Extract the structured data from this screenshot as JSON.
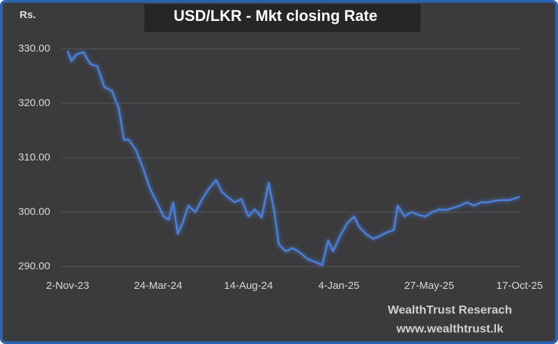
{
  "chart_data": {
    "type": "line",
    "title": "USD/LKR - Mkt closing Rate",
    "y_label": "Rs.",
    "credits": [
      "WealthTrust  Reserach",
      "www.wealthtrust.lk"
    ],
    "xlim": [
      "2023-11-02",
      "2025-10-17"
    ],
    "xticks": [
      {
        "value": "2023-11-02",
        "label": "2-Nov-23"
      },
      {
        "value": "2024-03-24",
        "label": "24-Mar-24"
      },
      {
        "value": "2024-08-14",
        "label": "14-Aug-24"
      },
      {
        "value": "2025-01-04",
        "label": "4-Jan-25"
      },
      {
        "value": "2025-05-27",
        "label": "27-May-25"
      },
      {
        "value": "2025-10-17",
        "label": "17-Oct-25"
      }
    ],
    "ylim": [
      290,
      330
    ],
    "yticks": [
      {
        "value": 290,
        "label": "290.00"
      },
      {
        "value": 300,
        "label": "300.00"
      },
      {
        "value": 310,
        "label": "310.00"
      },
      {
        "value": 320,
        "label": "320.00"
      },
      {
        "value": 330,
        "label": "330.00"
      }
    ],
    "grid": true,
    "x": [
      "2023-11-02",
      "2023-11-08",
      "2023-11-16",
      "2023-11-27",
      "2023-12-08",
      "2023-12-19",
      "2023-12-30",
      "2024-01-11",
      "2024-01-22",
      "2024-01-30",
      "2024-02-07",
      "2024-02-18",
      "2024-02-29",
      "2024-03-11",
      "2024-03-22",
      "2024-04-02",
      "2024-04-10",
      "2024-04-17",
      "2024-04-24",
      "2024-05-02",
      "2024-05-11",
      "2024-05-22",
      "2024-06-02",
      "2024-06-13",
      "2024-06-24",
      "2024-07-03",
      "2024-07-12",
      "2024-07-23",
      "2024-08-03",
      "2024-08-14",
      "2024-08-24",
      "2024-09-04",
      "2024-09-15",
      "2024-09-24",
      "2024-10-01",
      "2024-10-12",
      "2024-10-23",
      "2024-11-03",
      "2024-11-14",
      "2024-11-26",
      "2024-12-09",
      "2024-12-18",
      "2024-12-26",
      "2025-01-06",
      "2025-01-17",
      "2025-01-28",
      "2025-02-05",
      "2025-02-16",
      "2025-02-27",
      "2025-03-10",
      "2025-03-21",
      "2025-04-01",
      "2025-04-07",
      "2025-04-18",
      "2025-04-29",
      "2025-05-10",
      "2025-05-21",
      "2025-06-01",
      "2025-06-12",
      "2025-06-23",
      "2025-07-04",
      "2025-07-15",
      "2025-07-26",
      "2025-08-06",
      "2025-08-17",
      "2025-08-28",
      "2025-09-08",
      "2025-09-19",
      "2025-10-01",
      "2025-10-12",
      "2025-10-17"
    ],
    "series": [
      {
        "name": "USD/LKR",
        "color": "#4a80dc",
        "values": [
          329.6,
          327.7,
          329,
          329.4,
          327.2,
          326.8,
          323,
          322.3,
          319,
          313.3,
          313.3,
          311.4,
          308.2,
          304.4,
          301.8,
          299.2,
          298.6,
          301.8,
          296,
          298,
          301.2,
          300,
          302.4,
          304.4,
          305.9,
          303.7,
          302.8,
          301.8,
          302.4,
          299.2,
          300.5,
          299,
          305.4,
          300,
          294.1,
          292.8,
          293.4,
          292.6,
          291.5,
          290.9,
          290.3,
          294.8,
          292.8,
          295.6,
          297.9,
          299.2,
          297.3,
          296,
          295.1,
          295.6,
          296.3,
          296.7,
          301.2,
          299.2,
          300,
          299.5,
          299.2,
          300,
          300.5,
          300.4,
          300.8,
          301.2,
          301.8,
          301.2,
          301.8,
          301.8,
          302.1,
          302.2,
          302.2,
          302.6,
          302.8
        ]
      }
    ]
  }
}
